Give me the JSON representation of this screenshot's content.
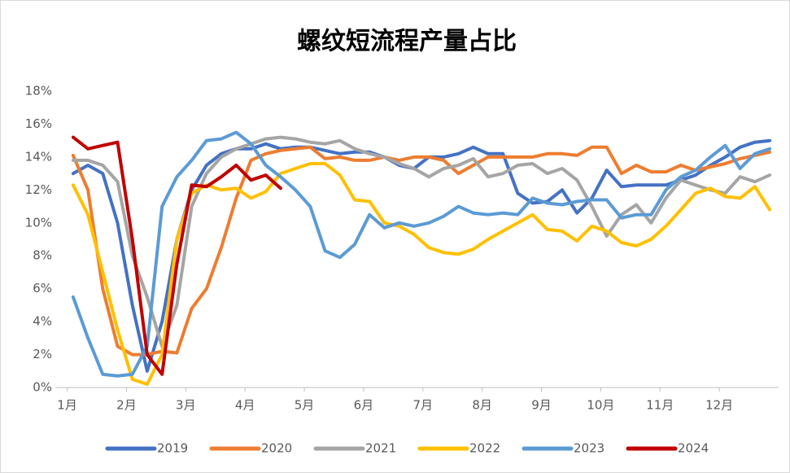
{
  "chart_data": {
    "type": "line",
    "title": "螺纹短流程产量占比",
    "x": [
      1.1,
      1.35,
      1.6,
      1.85,
      2.1,
      2.35,
      2.6,
      2.85,
      3.1,
      3.35,
      3.6,
      3.85,
      4.1,
      4.35,
      4.6,
      4.85,
      5.1,
      5.35,
      5.6,
      5.85,
      6.1,
      6.35,
      6.6,
      6.85,
      7.1,
      7.35,
      7.6,
      7.85,
      8.1,
      8.35,
      8.6,
      8.85,
      9.1,
      9.35,
      9.6,
      9.85,
      10.1,
      10.35,
      10.6,
      10.85,
      11.1,
      11.35,
      11.6,
      11.85,
      12.1,
      12.35,
      12.6,
      12.85
    ],
    "xlim": [
      0.8,
      13
    ],
    "xticks": [
      {
        "value": 1,
        "label": "1月"
      },
      {
        "value": 2,
        "label": "2月"
      },
      {
        "value": 3,
        "label": "3月"
      },
      {
        "value": 4,
        "label": "4月"
      },
      {
        "value": 5,
        "label": "5月"
      },
      {
        "value": 6,
        "label": "6月"
      },
      {
        "value": 7,
        "label": "7月"
      },
      {
        "value": 8,
        "label": "8月"
      },
      {
        "value": 9,
        "label": "9月"
      },
      {
        "value": 10,
        "label": "10月"
      },
      {
        "value": 11,
        "label": "11月"
      },
      {
        "value": 12,
        "label": "12月"
      }
    ],
    "ylim": [
      0,
      18
    ],
    "yticks": [
      {
        "value": 0,
        "label": "0%"
      },
      {
        "value": 2,
        "label": "2%"
      },
      {
        "value": 4,
        "label": "4%"
      },
      {
        "value": 6,
        "label": "6%"
      },
      {
        "value": 8,
        "label": "8%"
      },
      {
        "value": 10,
        "label": "10%"
      },
      {
        "value": 12,
        "label": "12%"
      },
      {
        "value": 14,
        "label": "14%"
      },
      {
        "value": 16,
        "label": "16%"
      },
      {
        "value": 18,
        "label": "18%"
      }
    ],
    "grid": false,
    "legend": "bottom",
    "series": [
      {
        "name": "2019",
        "color": "#4472c4",
        "values": [
          13,
          13.5,
          13,
          10,
          5,
          1,
          4,
          9,
          12,
          13.5,
          14.2,
          14.5,
          14.5,
          14.8,
          14.5,
          14.6,
          14.6,
          14.4,
          14.2,
          14.3,
          14.3,
          14,
          13.5,
          13.3,
          14,
          14,
          14.2,
          14.6,
          14.2,
          14.2,
          11.8,
          11.2,
          11.3,
          12,
          10.6,
          11.5,
          13.2,
          12.2,
          12.3,
          12.3,
          12.3,
          12.6,
          12.9,
          13.5,
          14,
          14.6,
          14.9,
          15
        ]
      },
      {
        "name": "2020",
        "color": "#ed7d31",
        "values": [
          14.1,
          12,
          6,
          2.5,
          2,
          2,
          2.2,
          2.1,
          4.8,
          6,
          8.5,
          11.5,
          13.8,
          14.2,
          14.4,
          14.5,
          14.6,
          13.9,
          14,
          13.8,
          13.8,
          14,
          13.8,
          14,
          14,
          13.8,
          13,
          13.5,
          14,
          14,
          14,
          14,
          14.2,
          14.2,
          14.1,
          14.6,
          14.6,
          13,
          13.5,
          13.1,
          13.1,
          13.5,
          13.2,
          13.4,
          13.6,
          13.9,
          14.1,
          14.3
        ]
      },
      {
        "name": "2021",
        "color": "#a5a5a5",
        "values": [
          13.8,
          13.8,
          13.5,
          12.5,
          8,
          5.5,
          2.5,
          5,
          11,
          13,
          14,
          14.5,
          14.8,
          15.1,
          15.2,
          15.1,
          14.9,
          14.8,
          15,
          14.5,
          14.2,
          14,
          13.6,
          13.3,
          12.8,
          13.3,
          13.5,
          13.9,
          12.8,
          13,
          13.5,
          13.6,
          13,
          13.3,
          12.6,
          11,
          9.2,
          10.5,
          11.1,
          10,
          11.5,
          12.6,
          12.3,
          12,
          11.8,
          12.8,
          12.5,
          12.9
        ]
      },
      {
        "name": "2022",
        "color": "#ffc000",
        "values": [
          12.3,
          10.5,
          7,
          3.5,
          0.5,
          0.2,
          2,
          9,
          11.8,
          12.3,
          12,
          12.1,
          11.5,
          11.9,
          13,
          13.3,
          13.6,
          13.6,
          12.9,
          11.4,
          11.3,
          10,
          9.8,
          9.3,
          8.5,
          8.2,
          8.1,
          8.4,
          9,
          9.5,
          10,
          10.5,
          9.6,
          9.5,
          8.9,
          9.8,
          9.5,
          8.8,
          8.6,
          9,
          9.8,
          10.8,
          11.8,
          12.1,
          11.6,
          11.5,
          12.2,
          10.8
        ]
      },
      {
        "name": "2023",
        "color": "#5b9bd5",
        "values": [
          5.5,
          3,
          0.8,
          0.7,
          0.8,
          2.5,
          11,
          12.8,
          13.8,
          15,
          15.1,
          15.5,
          14.8,
          13.5,
          12.8,
          12,
          11,
          8.3,
          7.9,
          8.7,
          10.5,
          9.7,
          10,
          9.8,
          10,
          10.4,
          11,
          10.6,
          10.5,
          10.6,
          10.5,
          11.5,
          11.2,
          11.1,
          11.3,
          11.4,
          11.4,
          10.3,
          10.5,
          10.5,
          12,
          12.8,
          13.2,
          14,
          14.7,
          13.3,
          14.2,
          14.5
        ]
      },
      {
        "name": "2024",
        "color": "#c00000",
        "values": [
          15.2,
          14.5,
          14.7,
          14.9,
          9,
          2,
          0.8,
          7.5,
          12.3,
          12.2,
          12.8,
          13.5,
          12.6,
          12.9,
          12.1,
          null,
          null,
          null,
          null,
          null,
          null,
          null,
          null,
          null,
          null,
          null,
          null,
          null,
          null,
          null,
          null,
          null,
          null,
          null,
          null,
          null,
          null,
          null,
          null,
          null,
          null,
          null,
          null,
          null,
          null,
          null,
          null,
          null
        ]
      }
    ]
  }
}
